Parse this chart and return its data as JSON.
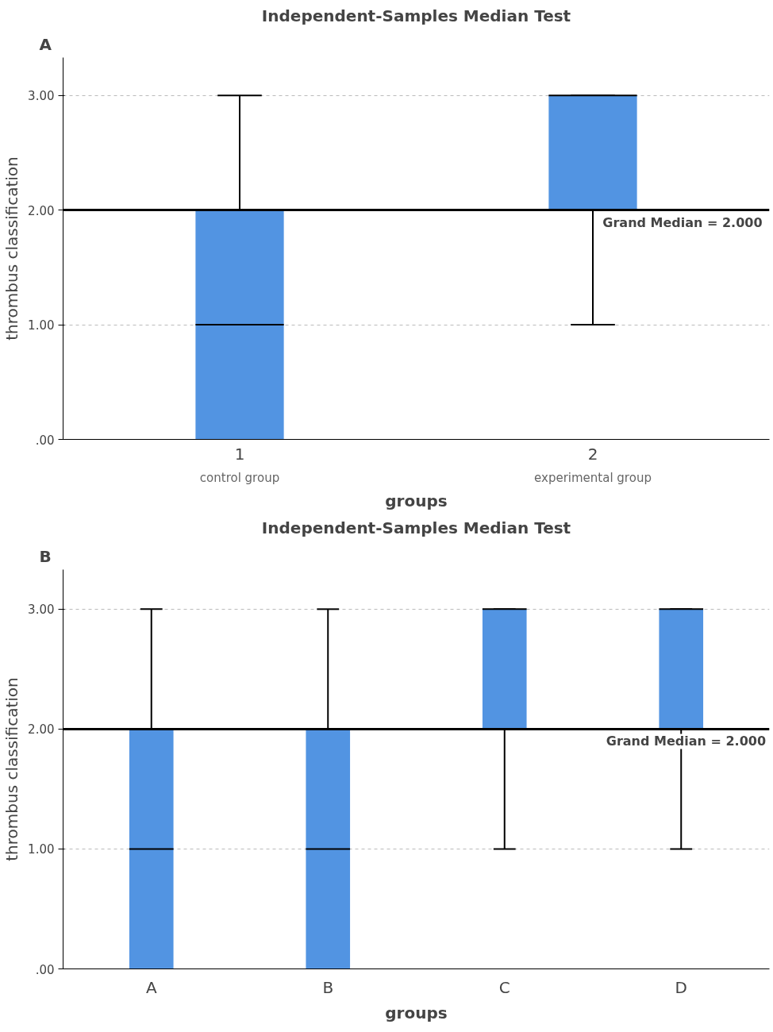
{
  "chart_data": [
    {
      "type": "box",
      "title": "Independent-Samples Median Test",
      "xlabel": "groups",
      "ylabel": "thrombus classification",
      "categories": [
        "1",
        "2"
      ],
      "boxes": [
        {
          "low": 0,
          "q1": 0,
          "median": 1,
          "q3": 2,
          "high": 3
        },
        {
          "low": 1,
          "q1": 2,
          "median": 3,
          "q3": 3,
          "high": 3
        }
      ],
      "color": "#5294e2",
      "ylim": [
        0,
        3.33
      ],
      "yticks": [
        {
          "value": 0,
          "label": ".00"
        },
        {
          "value": 1,
          "label": "1.00"
        },
        {
          "value": 2,
          "label": "2.00"
        },
        {
          "value": 3,
          "label": "3.00"
        }
      ],
      "grid": "y",
      "ref_lines": [
        {
          "axis": "y",
          "value": 2,
          "label": "Grand Median = 2.000",
          "color": "#000000"
        }
      ],
      "annotations": [
        "A",
        "control group",
        "experimental group"
      ]
    },
    {
      "type": "box",
      "title": "Independent-Samples Median Test",
      "xlabel": "groups",
      "ylabel": "thrombus classification",
      "categories": [
        "A",
        "B",
        "C",
        "D"
      ],
      "boxes": [
        {
          "low": 0,
          "q1": 0,
          "median": 1,
          "q3": 2,
          "high": 3
        },
        {
          "low": 0,
          "q1": 0,
          "median": 1,
          "q3": 2,
          "high": 3
        },
        {
          "low": 1,
          "q1": 2,
          "median": 3,
          "q3": 3,
          "high": 3
        },
        {
          "low": 1,
          "q1": 2,
          "median": 3,
          "q3": 3,
          "high": 3
        }
      ],
      "color": "#5294e2",
      "ylim": [
        0,
        3.33
      ],
      "yticks": [
        {
          "value": 0,
          "label": ".00"
        },
        {
          "value": 1,
          "label": "1.00"
        },
        {
          "value": 2,
          "label": "2.00"
        },
        {
          "value": 3,
          "label": "3.00"
        }
      ],
      "grid": "y",
      "ref_lines": [
        {
          "axis": "y",
          "value": 2,
          "label": "Grand Median = 2.000",
          "color": "#000000"
        }
      ],
      "annotations": [
        "B"
      ]
    }
  ]
}
